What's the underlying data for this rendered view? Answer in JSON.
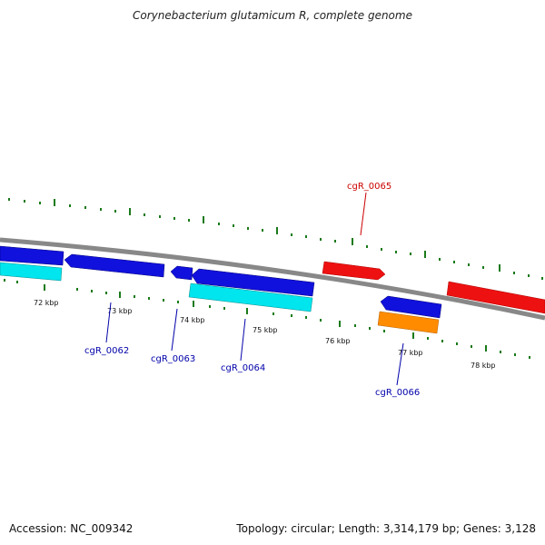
{
  "title": "Corynebacterium glutamicum R, complete genome",
  "footer": {
    "accession": "Accession: NC_009342",
    "summary": "Topology: circular; Length: 3,314,179 bp; Genes: 3,128"
  },
  "scale_labels": [
    "72 kbp",
    "73 kbp",
    "74 kbp",
    "75 kbp",
    "76 kbp",
    "77 kbp",
    "78 kbp"
  ],
  "gene_labels": [
    {
      "name": "cgR_0062",
      "color": "#0000aa"
    },
    {
      "name": "cgR_0063",
      "color": "#0000aa"
    },
    {
      "name": "cgR_0064",
      "color": "#0000aa"
    },
    {
      "name": "cgR_0065",
      "color": "#cc0000"
    },
    {
      "name": "cgR_0066",
      "color": "#0000aa"
    }
  ],
  "colors": {
    "backbone": "#888888",
    "tick": "#1a7a1a",
    "forward_gene": "#ee1111",
    "reverse_gene": "#1111dd",
    "rna_gene": "#00e5ee",
    "other_gene": "#ff8c00"
  }
}
